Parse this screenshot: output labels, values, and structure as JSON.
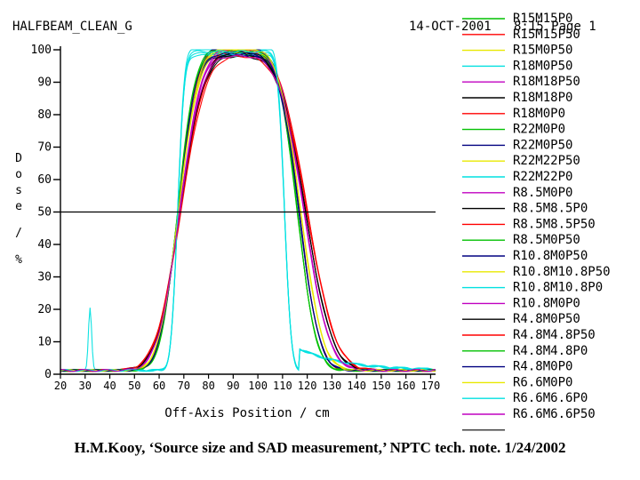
{
  "header": {
    "left_title": "HALFBEAM_CLEAN_G",
    "date": "14-OCT-2001",
    "page": "8:15 Page 1"
  },
  "caption": "H.M.Kooy, ‘Source size and SAD measurement,’ NPTC tech. note. 1/24/2002",
  "colors": {
    "background": "#ffffff",
    "axis": "#000000",
    "reference_line": "#000000"
  },
  "chart_data": {
    "type": "line",
    "title": "HALFBEAM_CLEAN_G",
    "xlabel": "Off-Axis Position / cm",
    "ylabel": "Dose / %",
    "xlim": [
      20,
      172
    ],
    "ylim": [
      0,
      100
    ],
    "xticks": [
      20,
      30,
      40,
      50,
      60,
      70,
      80,
      90,
      100,
      110,
      120,
      130,
      140,
      150,
      160,
      170
    ],
    "yticks": [
      0,
      10,
      20,
      30,
      40,
      50,
      60,
      70,
      80,
      90,
      100
    ],
    "reference_line_y": 50,
    "legend_position": "right",
    "series": [
      {
        "name": "R15M15P0",
        "color": "#00c000",
        "width": "wide"
      },
      {
        "name": "R15M15P50",
        "color": "#ff0000",
        "width": "wide"
      },
      {
        "name": "R15M0P50",
        "color": "#e8e800",
        "width": "wide"
      },
      {
        "name": "R18M0P50",
        "color": "#00e0e0",
        "width": "narrow"
      },
      {
        "name": "R18M18P50",
        "color": "#c000c0",
        "width": "wide"
      },
      {
        "name": "R18M18P0",
        "color": "#000000",
        "width": "wide"
      },
      {
        "name": "R18M0P0",
        "color": "#ff0000",
        "width": "wide"
      },
      {
        "name": "R22M0P0",
        "color": "#00c000",
        "width": "wide"
      },
      {
        "name": "R22M0P50",
        "color": "#000080",
        "width": "wide"
      },
      {
        "name": "R22M22P50",
        "color": "#e8e800",
        "width": "wide"
      },
      {
        "name": "R22M22P0",
        "color": "#00e0e0",
        "width": "narrow"
      },
      {
        "name": "R8.5M0P0",
        "color": "#c000c0",
        "width": "wide"
      },
      {
        "name": "R8.5M8.5P0",
        "color": "#000000",
        "width": "wide"
      },
      {
        "name": "R8.5M8.5P50",
        "color": "#ff0000",
        "width": "wide"
      },
      {
        "name": "R8.5M0P50",
        "color": "#00c000",
        "width": "wide"
      },
      {
        "name": "R10.8M0P50",
        "color": "#000080",
        "width": "wide"
      },
      {
        "name": "R10.8M10.8P50",
        "color": "#e8e800",
        "width": "wide"
      },
      {
        "name": "R10.8M10.8P0",
        "color": "#00e0e0",
        "width": "narrow",
        "spike_x": 32,
        "spike_y": 19
      },
      {
        "name": "R10.8M0P0",
        "color": "#c000c0",
        "width": "wide"
      },
      {
        "name": "R4.8M0P50",
        "color": "#000000",
        "width": "wide"
      },
      {
        "name": "R4.8M4.8P50",
        "color": "#ff0000",
        "width": "wide"
      },
      {
        "name": "R4.8M4.8P0",
        "color": "#00c000",
        "width": "wide"
      },
      {
        "name": "R4.8M0P0",
        "color": "#000080",
        "width": "wide"
      },
      {
        "name": "R6.6M0P0",
        "color": "#e8e800",
        "width": "wide"
      },
      {
        "name": "R6.6M6.6P0",
        "color": "#00e0e0",
        "width": "narrow"
      },
      {
        "name": "R6.6M6.6P50",
        "color": "#c000c0",
        "width": "wide"
      }
    ]
  }
}
